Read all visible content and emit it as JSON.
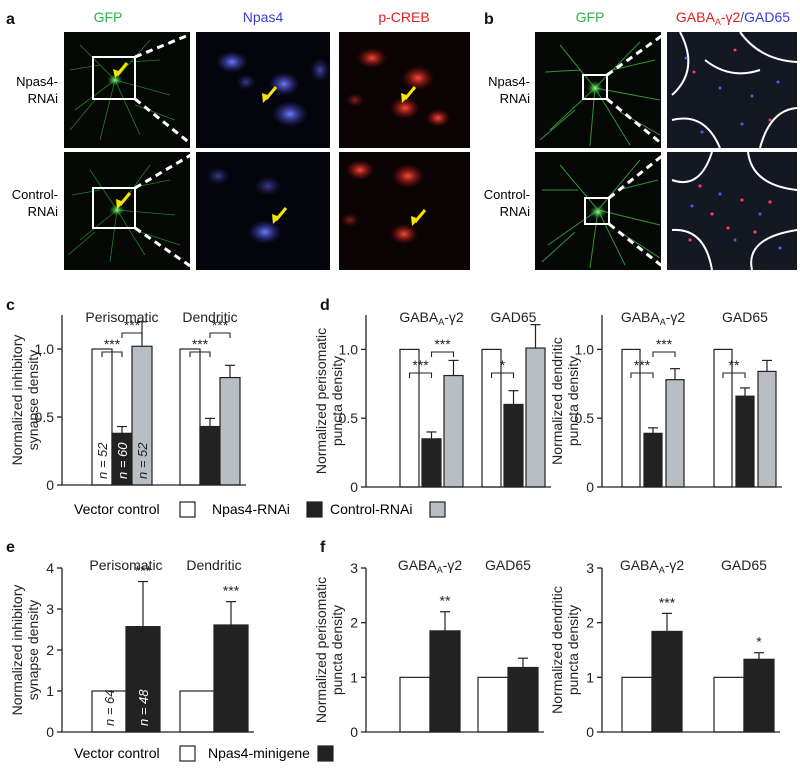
{
  "panel_labels": {
    "a": "a",
    "b": "b",
    "c": "c",
    "d": "d",
    "e": "e",
    "f": "f"
  },
  "panel_a": {
    "col_headers": [
      "GFP",
      "Npas4",
      "p-CREB"
    ],
    "col_colors": [
      "#2fb34a",
      "#3b3bd6",
      "#e01f1f"
    ],
    "row_labels": [
      [
        "Npas4-",
        "RNAi"
      ],
      [
        "Control-",
        "RNAi"
      ]
    ]
  },
  "panel_b": {
    "col_headers": [
      "GFP",
      "GABAA-γ2/GAD65"
    ],
    "gfp_header": "GFP",
    "gaba_header": {
      "main": "GABA",
      "sub": "A",
      "suffix": "-γ2",
      "slash": "/",
      "gad": "GAD65"
    },
    "row_labels": [
      [
        "Npas4-",
        "RNAi"
      ],
      [
        "Control-",
        "RNAi"
      ]
    ]
  },
  "legend_cd": [
    {
      "label": "Vector control",
      "fill": "#ffffff"
    },
    {
      "label": "Npas4-RNAi",
      "fill": "#222222"
    },
    {
      "label": "Control-RNAi",
      "fill": "#b8bec4"
    }
  ],
  "legend_ef": [
    {
      "label": "Vector control",
      "fill": "#ffffff"
    },
    {
      "label": "Npas4-minigene",
      "fill": "#222222"
    }
  ],
  "chart_data": [
    {
      "panel": "c",
      "type": "bar",
      "ylabel": [
        "Normalized inhibitory",
        "synapse density"
      ],
      "ylim": [
        0,
        1.25
      ],
      "yticks": [
        "0",
        "0.5",
        "1.0"
      ],
      "ytick_values": [
        0,
        0.5,
        1.0
      ],
      "groups": [
        {
          "label": "Perisomatic",
          "values": [
            1.0,
            0.38,
            1.02
          ],
          "errors": [
            0,
            0.05,
            0.18
          ],
          "n_labels": [
            "n = 52",
            "n = 60",
            "n = 52"
          ]
        },
        {
          "label": "Dendritic",
          "values": [
            1.0,
            0.43,
            0.79
          ],
          "errors": [
            0,
            0.06,
            0.09
          ],
          "n_labels": [
            "",
            "",
            ""
          ]
        }
      ],
      "series": [
        "Vector control",
        "Npas4-RNAi",
        "Control-RNAi"
      ],
      "significance": [
        {
          "group": 0,
          "from": 0,
          "to": 1,
          "text": "***",
          "tier": 0
        },
        {
          "group": 0,
          "from": 1,
          "to": 2,
          "text": "***",
          "tier": 1
        },
        {
          "group": 1,
          "from": 0,
          "to": 1,
          "text": "***",
          "tier": 0
        },
        {
          "group": 1,
          "from": 1,
          "to": 2,
          "text": "***",
          "tier": 1
        }
      ]
    },
    {
      "panel": "d-left",
      "type": "bar",
      "ylabel": [
        "Normalized perisomatic",
        "puncta density"
      ],
      "ylim": [
        0,
        1.25
      ],
      "yticks": [
        "0",
        "0.5",
        "1.0"
      ],
      "ytick_values": [
        0,
        0.5,
        1.0
      ],
      "groups": [
        {
          "label": "GABAA-γ2",
          "values": [
            1.0,
            0.35,
            0.81
          ],
          "errors": [
            0,
            0.05,
            0.11
          ]
        },
        {
          "label": "GAD65",
          "values": [
            1.0,
            0.6,
            1.01
          ],
          "errors": [
            0,
            0.1,
            0.17
          ]
        }
      ],
      "series": [
        "Vector control",
        "Npas4-RNAi",
        "Control-RNAi"
      ],
      "significance": [
        {
          "group": 0,
          "from": 0,
          "to": 1,
          "text": "***",
          "tier": 0
        },
        {
          "group": 0,
          "from": 1,
          "to": 2,
          "text": "***",
          "tier": 1
        },
        {
          "group": 1,
          "from": 0,
          "to": 1,
          "text": "*",
          "tier": 0
        }
      ]
    },
    {
      "panel": "d-right",
      "type": "bar",
      "ylabel": [
        "Normalized dendritic",
        "puncta density"
      ],
      "ylim": [
        0,
        1.25
      ],
      "yticks": [
        "0",
        "0.5",
        "1.0"
      ],
      "ytick_values": [
        0,
        0.5,
        1.0
      ],
      "groups": [
        {
          "label": "GABAA-γ2",
          "values": [
            1.0,
            0.39,
            0.78
          ],
          "errors": [
            0,
            0.04,
            0.08
          ]
        },
        {
          "label": "GAD65",
          "values": [
            1.0,
            0.66,
            0.84
          ],
          "errors": [
            0,
            0.06,
            0.08
          ]
        }
      ],
      "series": [
        "Vector control",
        "Npas4-RNAi",
        "Control-RNAi"
      ],
      "significance": [
        {
          "group": 0,
          "from": 0,
          "to": 1,
          "text": "***",
          "tier": 0
        },
        {
          "group": 0,
          "from": 1,
          "to": 2,
          "text": "***",
          "tier": 1
        },
        {
          "group": 1,
          "from": 0,
          "to": 1,
          "text": "**",
          "tier": 0
        }
      ]
    },
    {
      "panel": "e",
      "type": "bar",
      "ylabel": [
        "Normalized inhibitory",
        "synapse density"
      ],
      "ylim": [
        0,
        4
      ],
      "yticks": [
        "0",
        "1",
        "2",
        "3",
        "4"
      ],
      "ytick_values": [
        0,
        1,
        2,
        3,
        4
      ],
      "groups": [
        {
          "label": "Perisomatic",
          "values": [
            1.0,
            2.57
          ],
          "errors": [
            0,
            1.1
          ],
          "n_labels": [
            "n = 64",
            "n = 48"
          ],
          "stars": [
            "",
            "***"
          ]
        },
        {
          "label": "Dendritic",
          "values": [
            1.0,
            2.61
          ],
          "errors": [
            0,
            0.57
          ],
          "n_labels": [
            "",
            ""
          ],
          "stars": [
            "",
            "***"
          ]
        }
      ],
      "series": [
        "Vector control",
        "Npas4-minigene"
      ]
    },
    {
      "panel": "f-left",
      "type": "bar",
      "ylabel": [
        "Normalized perisomatic",
        "puncta density"
      ],
      "ylim": [
        0,
        3
      ],
      "yticks": [
        "0",
        "1",
        "2",
        "3"
      ],
      "ytick_values": [
        0,
        1,
        2,
        3
      ],
      "groups": [
        {
          "label": "GABAA-γ2",
          "values": [
            1.0,
            1.85
          ],
          "errors": [
            0,
            0.35
          ],
          "stars": [
            "",
            "**"
          ]
        },
        {
          "label": "GAD65",
          "values": [
            1.0,
            1.18
          ],
          "errors": [
            0,
            0.17
          ],
          "stars": [
            "",
            ""
          ]
        }
      ],
      "series": [
        "Vector control",
        "Npas4-minigene"
      ]
    },
    {
      "panel": "f-right",
      "type": "bar",
      "ylabel": [
        "Normalized dendritic",
        "puncta density"
      ],
      "ylim": [
        0,
        3
      ],
      "yticks": [
        "0",
        "1",
        "2",
        "3"
      ],
      "ytick_values": [
        0,
        1,
        2,
        3
      ],
      "groups": [
        {
          "label": "GABAA-γ2",
          "values": [
            1.0,
            1.84
          ],
          "errors": [
            0,
            0.33
          ],
          "stars": [
            "",
            "***"
          ]
        },
        {
          "label": "GAD65",
          "values": [
            1.0,
            1.33
          ],
          "errors": [
            0,
            0.12
          ],
          "stars": [
            "",
            "*"
          ]
        }
      ],
      "series": [
        "Vector control",
        "Npas4-minigene"
      ]
    }
  ]
}
